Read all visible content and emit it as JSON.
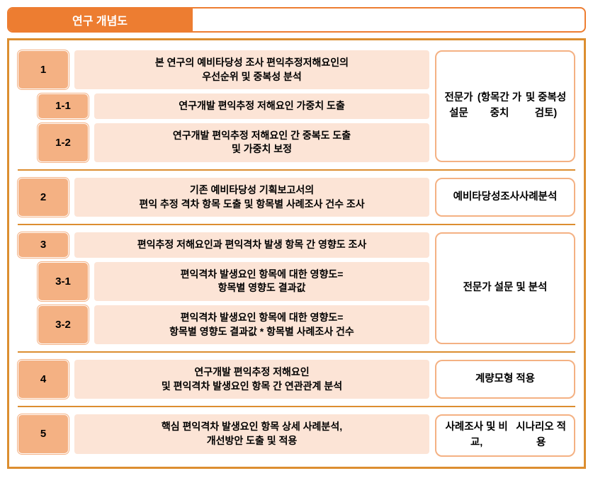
{
  "title": "연구 개념도",
  "colors": {
    "accent": "#ed7d31",
    "border": "#dc8e30",
    "badge_bg": "#f4b183",
    "desc_bg": "#fce4d6",
    "right_border": "#f4b183",
    "text": "#000000",
    "title_text": "#ffffff"
  },
  "sections": [
    {
      "rows": [
        {
          "badge": "1",
          "sub": false,
          "desc": "본 연구의 예비타당성 조사 편익추정저해요인의\n우선순위 및 중복성 분석"
        },
        {
          "badge": "1-1",
          "sub": true,
          "desc": "연구개발 편익추정 저해요인 가중치 도출"
        },
        {
          "badge": "1-2",
          "sub": true,
          "desc": "연구개발 편익추정 저해요인 간 중복도 도출\n및 가중치 보정"
        }
      ],
      "right": "전문가 설문\n(항목간 가중치\n및 중복성 검토)"
    },
    {
      "rows": [
        {
          "badge": "2",
          "sub": false,
          "desc": "기존 예비타당성 기획보고서의\n편익 추정 격차 항목 도출 및 항목별 사례조사 건수 조사"
        }
      ],
      "right": "예비타당성조사\n사례분석"
    },
    {
      "rows": [
        {
          "badge": "3",
          "sub": false,
          "desc": "편익추정 저해요인과 편익격차 발생 항목 간 영향도 조사"
        },
        {
          "badge": "3-1",
          "sub": true,
          "desc": "편익격차 발생요인 항목에 대한 영향도=\n항목별 영향도 결과값"
        },
        {
          "badge": "3-2",
          "sub": true,
          "desc": "편익격차 발생요인 항목에 대한 영향도=\n항목별 영향도 결과값 * 항목별 사례조사 건수"
        }
      ],
      "right": "전문가 설문 및 분석"
    },
    {
      "rows": [
        {
          "badge": "4",
          "sub": false,
          "desc": "연구개발 편익추정 저해요인\n및 편익격차 발생요인 항목 간 연관관계 분석"
        }
      ],
      "right": "계량모형 적용"
    },
    {
      "rows": [
        {
          "badge": "5",
          "sub": false,
          "desc": "핵심 편익격차 발생요인 항목 상세 사례분석,\n개선방안 도출 및 적용"
        }
      ],
      "right": "사례조사 및 비교,\n시나리오 적용"
    }
  ]
}
